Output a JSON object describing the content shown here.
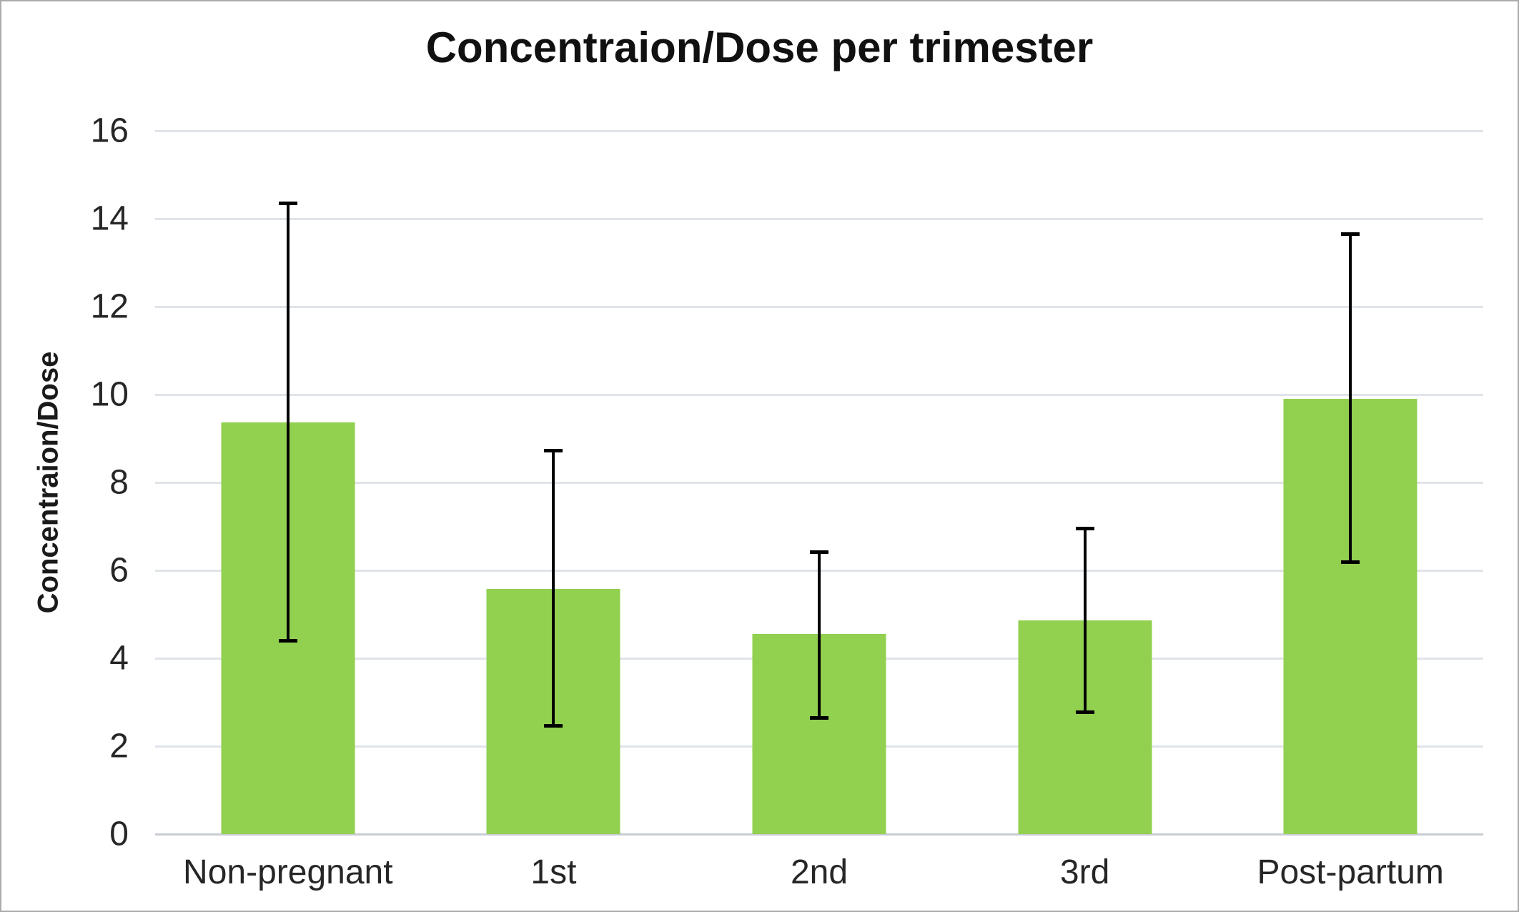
{
  "window": {
    "background": "#ffffff",
    "border_color": "#ababab"
  },
  "chart_data": {
    "type": "bar",
    "title": "Concentraion/Dose per trimester",
    "ylabel": "Concentraion/Dose",
    "xlabel": "",
    "categories": [
      "Non-pregnant",
      "1st",
      "2nd",
      "3rd",
      "Post-partum"
    ],
    "series": [
      {
        "name": "Concentraion/Dose",
        "values": [
          9.37,
          5.58,
          4.55,
          4.86,
          9.9
        ],
        "error_low": [
          4.4,
          2.47,
          2.65,
          2.77,
          6.18
        ],
        "error_high": [
          14.35,
          8.72,
          6.42,
          6.95,
          13.65
        ]
      }
    ],
    "ylim": [
      0,
      16
    ],
    "yticks": [
      0,
      2,
      4,
      6,
      8,
      10,
      12,
      14,
      16
    ],
    "grid": true,
    "legend": "none",
    "colors": {
      "bar": "#92d050",
      "error_bar": "#000000",
      "gridline": "#dfe4ea",
      "axis_line": "#c8cdd4",
      "tick_text": "#262626",
      "title_text": "#111111"
    }
  }
}
